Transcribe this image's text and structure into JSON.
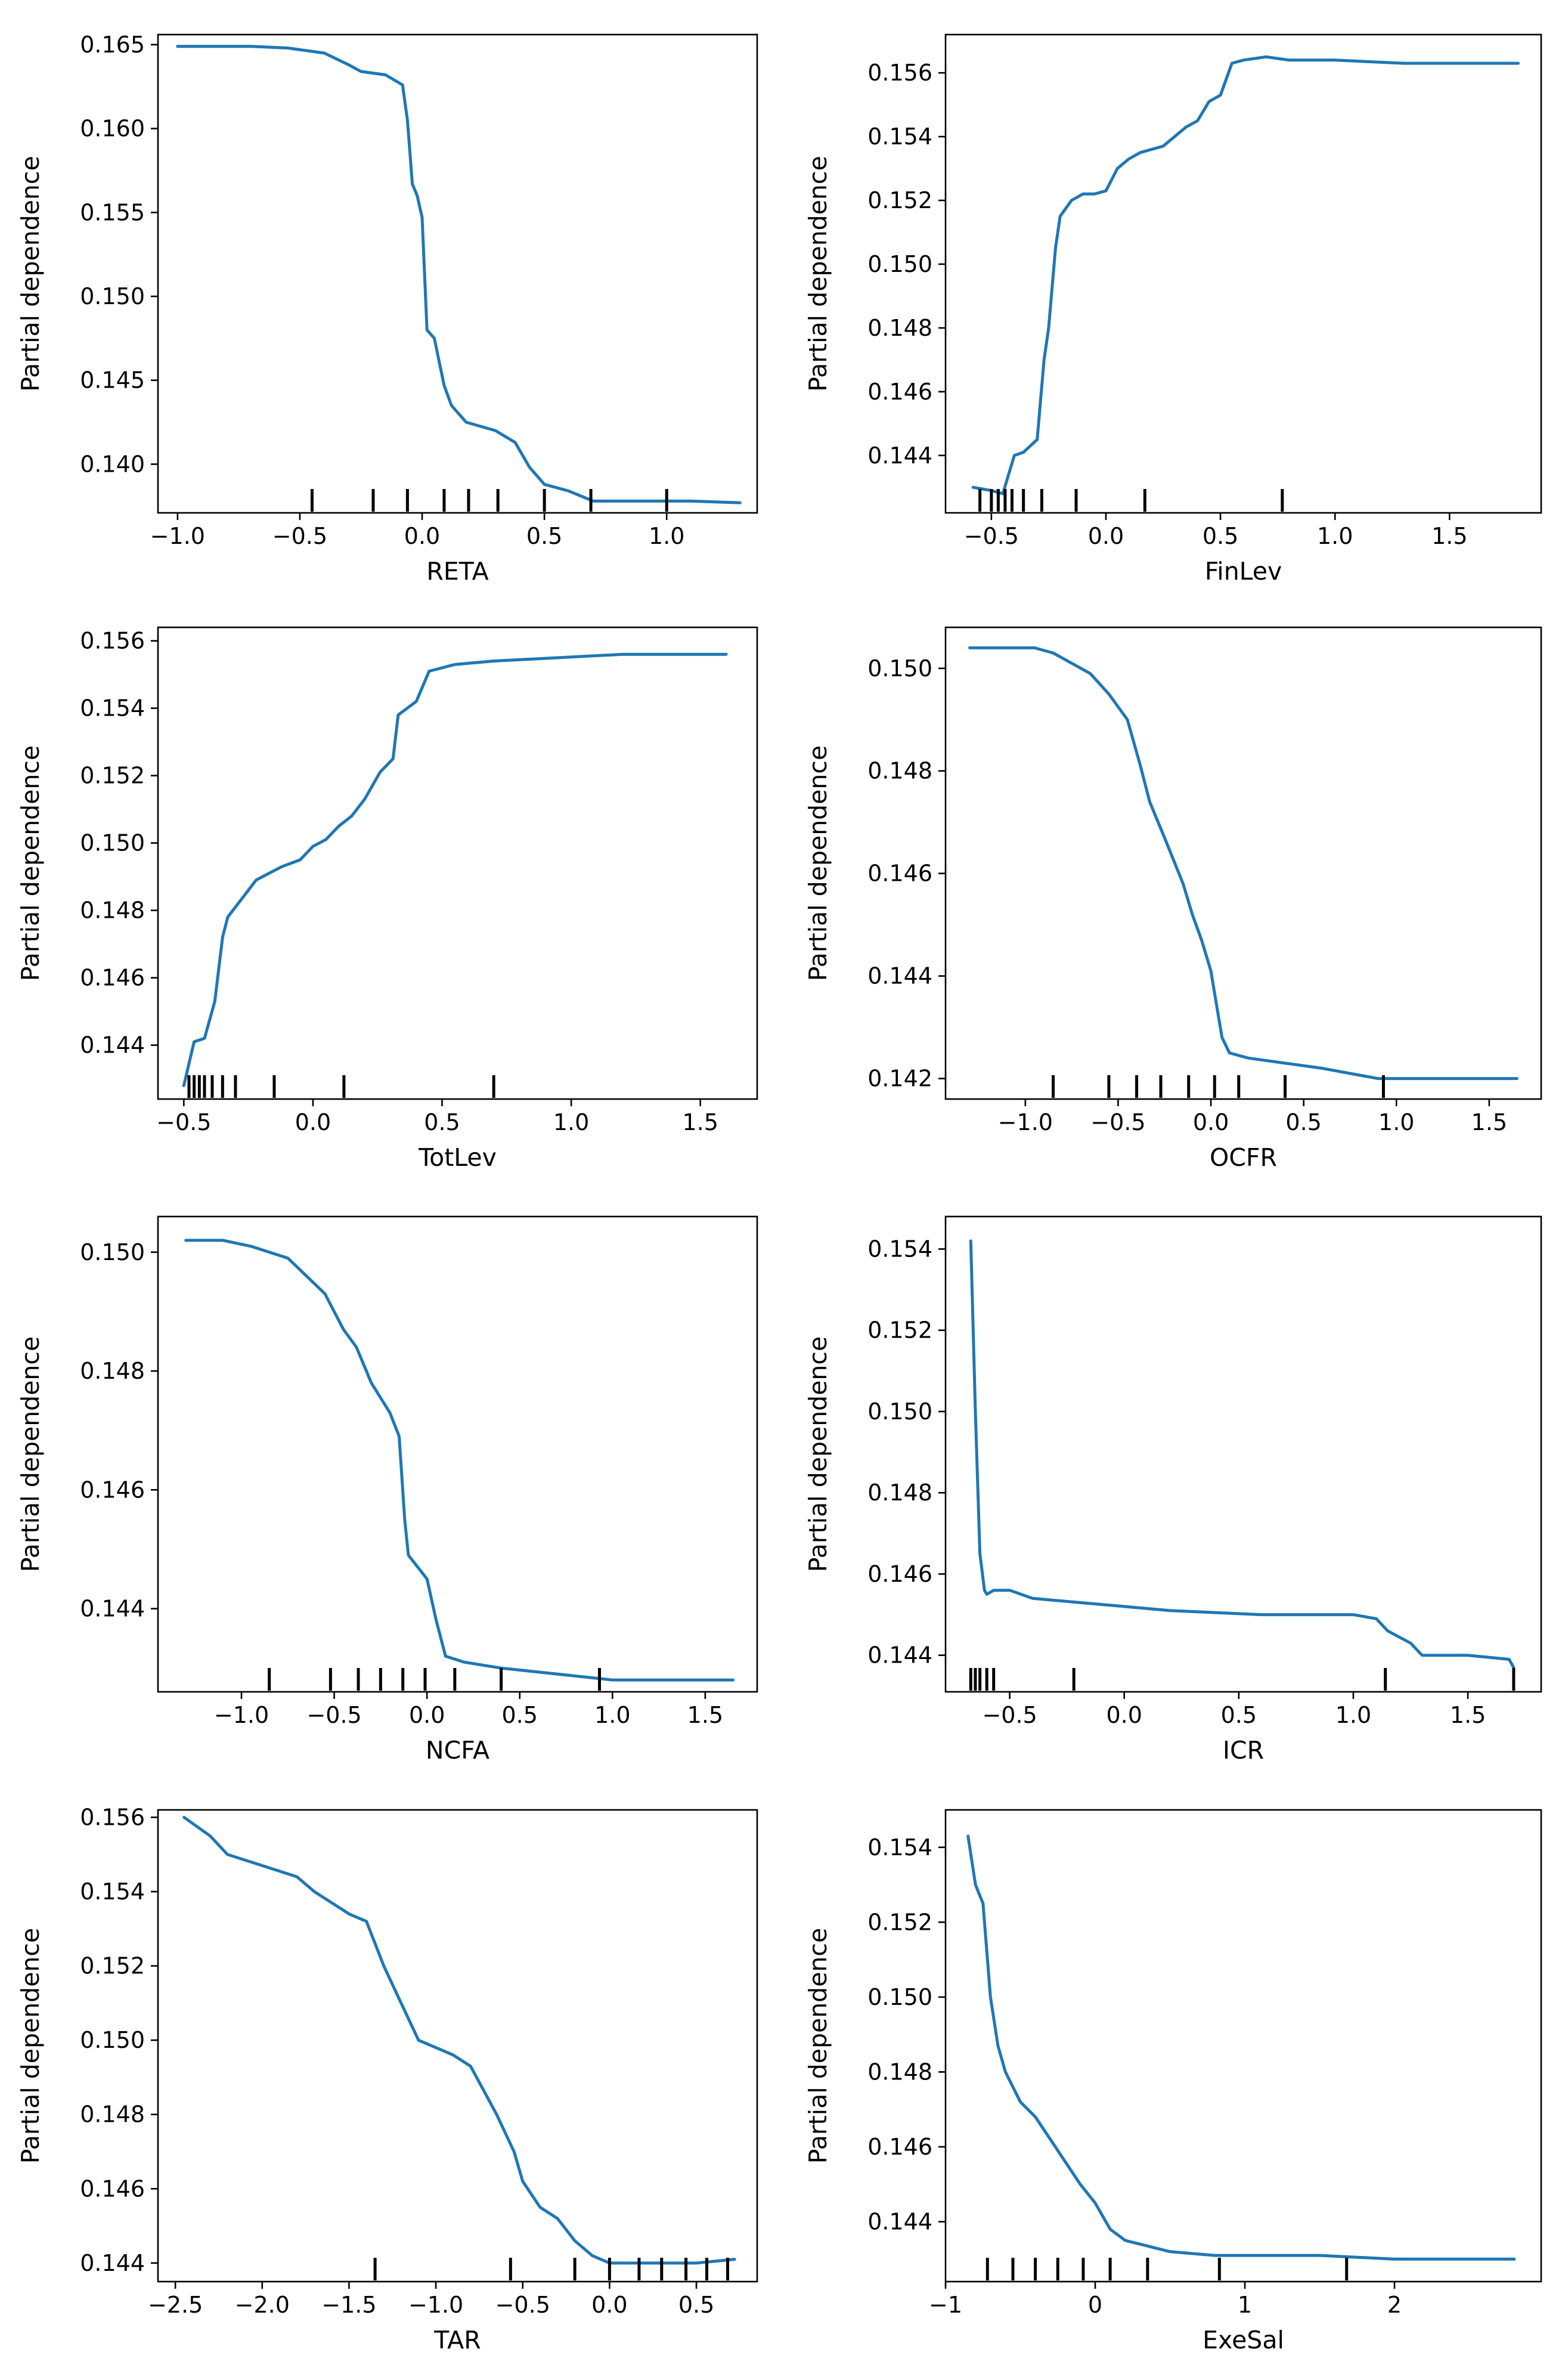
{
  "colors": {
    "line": "#1f77b4",
    "axes": "#000000",
    "background": "#ffffff"
  },
  "chart_data": [
    {
      "type": "line",
      "feature": "RETA",
      "xlabel": "RETA",
      "ylabel": "Partial dependence",
      "xlim": [
        -1.08,
        1.37
      ],
      "ylim": [
        0.1371,
        0.1656
      ],
      "xticks": [
        -1.0,
        -0.5,
        0.0,
        0.5,
        1.0
      ],
      "xtick_labels": [
        "−1.0",
        "−0.5",
        "0.0",
        "0.5",
        "1.0"
      ],
      "yticks": [
        0.14,
        0.145,
        0.15,
        0.155,
        0.16,
        0.165
      ],
      "ytick_labels": [
        "0.140",
        "0.145",
        "0.150",
        "0.155",
        "0.160",
        "0.165"
      ],
      "x": [
        -1.0,
        -0.7,
        -0.55,
        -0.4,
        -0.3,
        -0.25,
        -0.15,
        -0.08,
        -0.06,
        -0.04,
        -0.02,
        0.0,
        0.02,
        0.05,
        0.09,
        0.12,
        0.18,
        0.3,
        0.38,
        0.44,
        0.5,
        0.6,
        0.7,
        0.9,
        1.1,
        1.3
      ],
      "y": [
        0.1649,
        0.1649,
        0.1648,
        0.1645,
        0.1638,
        0.1634,
        0.1632,
        0.1626,
        0.1605,
        0.1567,
        0.156,
        0.1547,
        0.148,
        0.1475,
        0.1447,
        0.1435,
        0.1425,
        0.142,
        0.1413,
        0.1398,
        0.1388,
        0.1384,
        0.1378,
        0.1378,
        0.1378,
        0.1377
      ],
      "rug": [
        -0.45,
        -0.2,
        -0.06,
        0.09,
        0.19,
        0.31,
        0.5,
        0.69,
        1.0
      ]
    },
    {
      "type": "line",
      "feature": "FinLev",
      "xlabel": "FinLev",
      "ylabel": "Partial dependence",
      "xlim": [
        -0.7,
        1.9
      ],
      "ylim": [
        0.1422,
        0.1572
      ],
      "xticks": [
        -0.5,
        0.0,
        0.5,
        1.0,
        1.5
      ],
      "xtick_labels": [
        "−0.5",
        "0.0",
        "0.5",
        "1.0",
        "1.5"
      ],
      "yticks": [
        0.144,
        0.146,
        0.148,
        0.15,
        0.152,
        0.154,
        0.156
      ],
      "ytick_labels": [
        "0.144",
        "0.146",
        "0.148",
        "0.150",
        "0.152",
        "0.154",
        "0.156"
      ],
      "x": [
        -0.58,
        -0.5,
        -0.45,
        -0.4,
        -0.36,
        -0.3,
        -0.27,
        -0.25,
        -0.22,
        -0.2,
        -0.15,
        -0.1,
        -0.05,
        0.0,
        0.05,
        0.1,
        0.15,
        0.25,
        0.35,
        0.4,
        0.45,
        0.5,
        0.55,
        0.6,
        0.7,
        0.8,
        1.0,
        1.3,
        1.8
      ],
      "y": [
        0.143,
        0.1429,
        0.1428,
        0.144,
        0.1441,
        0.1445,
        0.147,
        0.148,
        0.1505,
        0.1515,
        0.152,
        0.1522,
        0.1522,
        0.1523,
        0.153,
        0.1533,
        0.1535,
        0.1537,
        0.1543,
        0.1545,
        0.1551,
        0.1553,
        0.1563,
        0.1564,
        0.1565,
        0.1564,
        0.1564,
        0.1563,
        0.1563
      ],
      "rug": [
        -0.55,
        -0.5,
        -0.47,
        -0.44,
        -0.41,
        -0.36,
        -0.28,
        -0.13,
        0.17,
        0.77
      ]
    },
    {
      "type": "line",
      "feature": "TotLev",
      "xlabel": "TotLev",
      "ylabel": "Partial dependence",
      "xlim": [
        -0.6,
        1.72
      ],
      "ylim": [
        0.1424,
        0.1564
      ],
      "xticks": [
        -0.5,
        0.0,
        0.5,
        1.0,
        1.5
      ],
      "xtick_labels": [
        "−0.5",
        "0.0",
        "0.5",
        "1.0",
        "1.5"
      ],
      "yticks": [
        0.144,
        0.146,
        0.148,
        0.15,
        0.152,
        0.154,
        0.156
      ],
      "ytick_labels": [
        "0.144",
        "0.146",
        "0.148",
        "0.150",
        "0.152",
        "0.154",
        "0.156"
      ],
      "x": [
        -0.5,
        -0.46,
        -0.42,
        -0.38,
        -0.35,
        -0.33,
        -0.31,
        -0.27,
        -0.22,
        -0.17,
        -0.12,
        -0.05,
        0.0,
        0.05,
        0.1,
        0.15,
        0.2,
        0.26,
        0.31,
        0.33,
        0.4,
        0.45,
        0.55,
        0.7,
        0.95,
        1.2,
        1.6
      ],
      "y": [
        0.1428,
        0.1441,
        0.1442,
        0.1453,
        0.1472,
        0.1478,
        0.148,
        0.1484,
        0.1489,
        0.1491,
        0.1493,
        0.1495,
        0.1499,
        0.1501,
        0.1505,
        0.1508,
        0.1513,
        0.1521,
        0.1525,
        0.1538,
        0.1542,
        0.1551,
        0.1553,
        0.1554,
        0.1555,
        0.1556,
        0.1556
      ],
      "rug": [
        -0.48,
        -0.46,
        -0.44,
        -0.42,
        -0.39,
        -0.35,
        -0.3,
        -0.15,
        0.12,
        0.7
      ]
    },
    {
      "type": "line",
      "feature": "OCFR",
      "xlabel": "OCFR",
      "ylabel": "Partial dependence",
      "xlim": [
        -1.43,
        1.78
      ],
      "ylim": [
        0.1416,
        0.1508
      ],
      "xticks": [
        -1.0,
        -0.5,
        0.0,
        0.5,
        1.0,
        1.5
      ],
      "xtick_labels": [
        "−1.0",
        "−0.5",
        "0.0",
        "0.5",
        "1.0",
        "1.5"
      ],
      "yticks": [
        0.142,
        0.144,
        0.146,
        0.148,
        0.15
      ],
      "ytick_labels": [
        "0.142",
        "0.144",
        "0.146",
        "0.148",
        "0.150"
      ],
      "x": [
        -1.3,
        -1.1,
        -0.95,
        -0.85,
        -0.75,
        -0.65,
        -0.55,
        -0.45,
        -0.38,
        -0.33,
        -0.25,
        -0.15,
        -0.1,
        -0.05,
        0.0,
        0.06,
        0.1,
        0.2,
        0.4,
        0.6,
        0.9,
        1.2,
        1.65
      ],
      "y": [
        0.1504,
        0.1504,
        0.1504,
        0.1503,
        0.1501,
        0.1499,
        0.1495,
        0.149,
        0.1481,
        0.1474,
        0.1467,
        0.1458,
        0.1452,
        0.1447,
        0.1441,
        0.1428,
        0.1425,
        0.1424,
        0.1423,
        0.1422,
        0.142,
        0.142,
        0.142
      ],
      "rug": [
        -0.85,
        -0.55,
        -0.4,
        -0.27,
        -0.12,
        0.02,
        0.15,
        0.4,
        0.93
      ]
    },
    {
      "type": "line",
      "feature": "NCFA",
      "xlabel": "NCFA",
      "ylabel": "Partial dependence",
      "xlim": [
        -1.45,
        1.78
      ],
      "ylim": [
        0.1426,
        0.1506
      ],
      "xticks": [
        -1.0,
        -0.5,
        0.0,
        0.5,
        1.0,
        1.5
      ],
      "xtick_labels": [
        "−1.0",
        "−0.5",
        "0.0",
        "0.5",
        "1.0",
        "1.5"
      ],
      "yticks": [
        0.144,
        0.146,
        0.148,
        0.15
      ],
      "ytick_labels": [
        "0.144",
        "0.146",
        "0.148",
        "0.150"
      ],
      "x": [
        -1.3,
        -1.1,
        -0.95,
        -0.85,
        -0.75,
        -0.65,
        -0.55,
        -0.45,
        -0.38,
        -0.3,
        -0.2,
        -0.15,
        -0.12,
        -0.1,
        -0.05,
        0.0,
        0.05,
        0.1,
        0.2,
        0.4,
        0.7,
        1.0,
        1.3,
        1.65
      ],
      "y": [
        0.1502,
        0.1502,
        0.1501,
        0.15,
        0.1499,
        0.1496,
        0.1493,
        0.1487,
        0.1484,
        0.1478,
        0.1473,
        0.1469,
        0.1455,
        0.1449,
        0.1447,
        0.1445,
        0.1438,
        0.1432,
        0.1431,
        0.143,
        0.1429,
        0.1428,
        0.1428,
        0.1428
      ],
      "rug": [
        -0.85,
        -0.52,
        -0.37,
        -0.25,
        -0.13,
        -0.01,
        0.15,
        0.4,
        0.93
      ]
    },
    {
      "type": "line",
      "feature": "ICR",
      "xlabel": "ICR",
      "ylabel": "Partial dependence",
      "xlim": [
        -0.78,
        1.82
      ],
      "ylim": [
        0.1431,
        0.1548
      ],
      "xticks": [
        -0.5,
        0.0,
        0.5,
        1.0,
        1.5
      ],
      "xtick_labels": [
        "−0.5",
        "0.0",
        "0.5",
        "1.0",
        "1.5"
      ],
      "yticks": [
        0.144,
        0.146,
        0.148,
        0.15,
        0.152,
        0.154
      ],
      "ytick_labels": [
        "0.144",
        "0.146",
        "0.148",
        "0.150",
        "0.152",
        "0.154"
      ],
      "x": [
        -0.67,
        -0.65,
        -0.63,
        -0.61,
        -0.6,
        -0.57,
        -0.5,
        -0.4,
        -0.2,
        0.0,
        0.2,
        0.6,
        1.0,
        1.1,
        1.15,
        1.25,
        1.3,
        1.5,
        1.68,
        1.7
      ],
      "y": [
        0.1542,
        0.15,
        0.1465,
        0.1456,
        0.1455,
        0.1456,
        0.1456,
        0.1454,
        0.1453,
        0.1452,
        0.1451,
        0.145,
        0.145,
        0.1449,
        0.1446,
        0.1443,
        0.144,
        0.144,
        0.1439,
        0.1437
      ],
      "rug": [
        -0.67,
        -0.65,
        -0.63,
        -0.6,
        -0.57,
        -0.22,
        1.14,
        1.7
      ]
    },
    {
      "type": "line",
      "feature": "TAR",
      "xlabel": "TAR",
      "ylabel": "Partial dependence",
      "xlim": [
        -2.6,
        0.85
      ],
      "ylim": [
        0.1435,
        0.1562
      ],
      "xticks": [
        -2.5,
        -2.0,
        -1.5,
        -1.0,
        -0.5,
        0.0,
        0.5
      ],
      "xtick_labels": [
        "−2.5",
        "−2.0",
        "−1.5",
        "−1.0",
        "−0.5",
        "0.0",
        "0.5"
      ],
      "yticks": [
        0.144,
        0.146,
        0.148,
        0.15,
        0.152,
        0.154,
        0.156
      ],
      "ytick_labels": [
        "0.144",
        "0.146",
        "0.148",
        "0.150",
        "0.152",
        "0.154",
        "0.156"
      ],
      "x": [
        -2.45,
        -2.3,
        -2.2,
        -2.0,
        -1.8,
        -1.7,
        -1.5,
        -1.4,
        -1.3,
        -1.2,
        -1.1,
        -1.0,
        -0.9,
        -0.8,
        -0.65,
        -0.55,
        -0.5,
        -0.4,
        -0.3,
        -0.2,
        -0.1,
        0.0,
        0.2,
        0.5,
        0.72
      ],
      "y": [
        0.156,
        0.1555,
        0.155,
        0.1547,
        0.1544,
        0.154,
        0.1534,
        0.1532,
        0.152,
        0.151,
        0.15,
        0.1498,
        0.1496,
        0.1493,
        0.148,
        0.147,
        0.1462,
        0.1455,
        0.1452,
        0.1446,
        0.1442,
        0.144,
        0.144,
        0.144,
        0.1441
      ],
      "rug": [
        -1.35,
        -0.57,
        -0.2,
        0.0,
        0.17,
        0.3,
        0.44,
        0.56,
        0.68
      ]
    },
    {
      "type": "line",
      "feature": "ExeSal",
      "xlabel": "ExeSal",
      "ylabel": "Partial dependence",
      "xlim": [
        -1.0,
        2.98
      ],
      "ylim": [
        0.1424,
        0.155
      ],
      "xticks": [
        -1,
        0,
        1,
        2
      ],
      "xtick_labels": [
        "−1",
        "0",
        "1",
        "2"
      ],
      "yticks": [
        0.144,
        0.146,
        0.148,
        0.15,
        0.152,
        0.154
      ],
      "ytick_labels": [
        "0.144",
        "0.146",
        "0.148",
        "0.150",
        "0.152",
        "0.154"
      ],
      "x": [
        -0.85,
        -0.8,
        -0.75,
        -0.7,
        -0.65,
        -0.6,
        -0.5,
        -0.4,
        -0.3,
        -0.2,
        -0.1,
        0.0,
        0.1,
        0.2,
        0.3,
        0.5,
        0.8,
        1.0,
        1.5,
        2.0,
        2.5,
        2.8
      ],
      "y": [
        0.1543,
        0.153,
        0.1525,
        0.15,
        0.1487,
        0.148,
        0.1472,
        0.1468,
        0.1462,
        0.1456,
        0.145,
        0.1445,
        0.1438,
        0.1435,
        0.1434,
        0.1432,
        0.1431,
        0.1431,
        0.1431,
        0.143,
        0.143,
        0.143
      ],
      "rug": [
        -0.72,
        -0.55,
        -0.4,
        -0.25,
        -0.08,
        0.1,
        0.35,
        0.83,
        1.68
      ]
    }
  ]
}
